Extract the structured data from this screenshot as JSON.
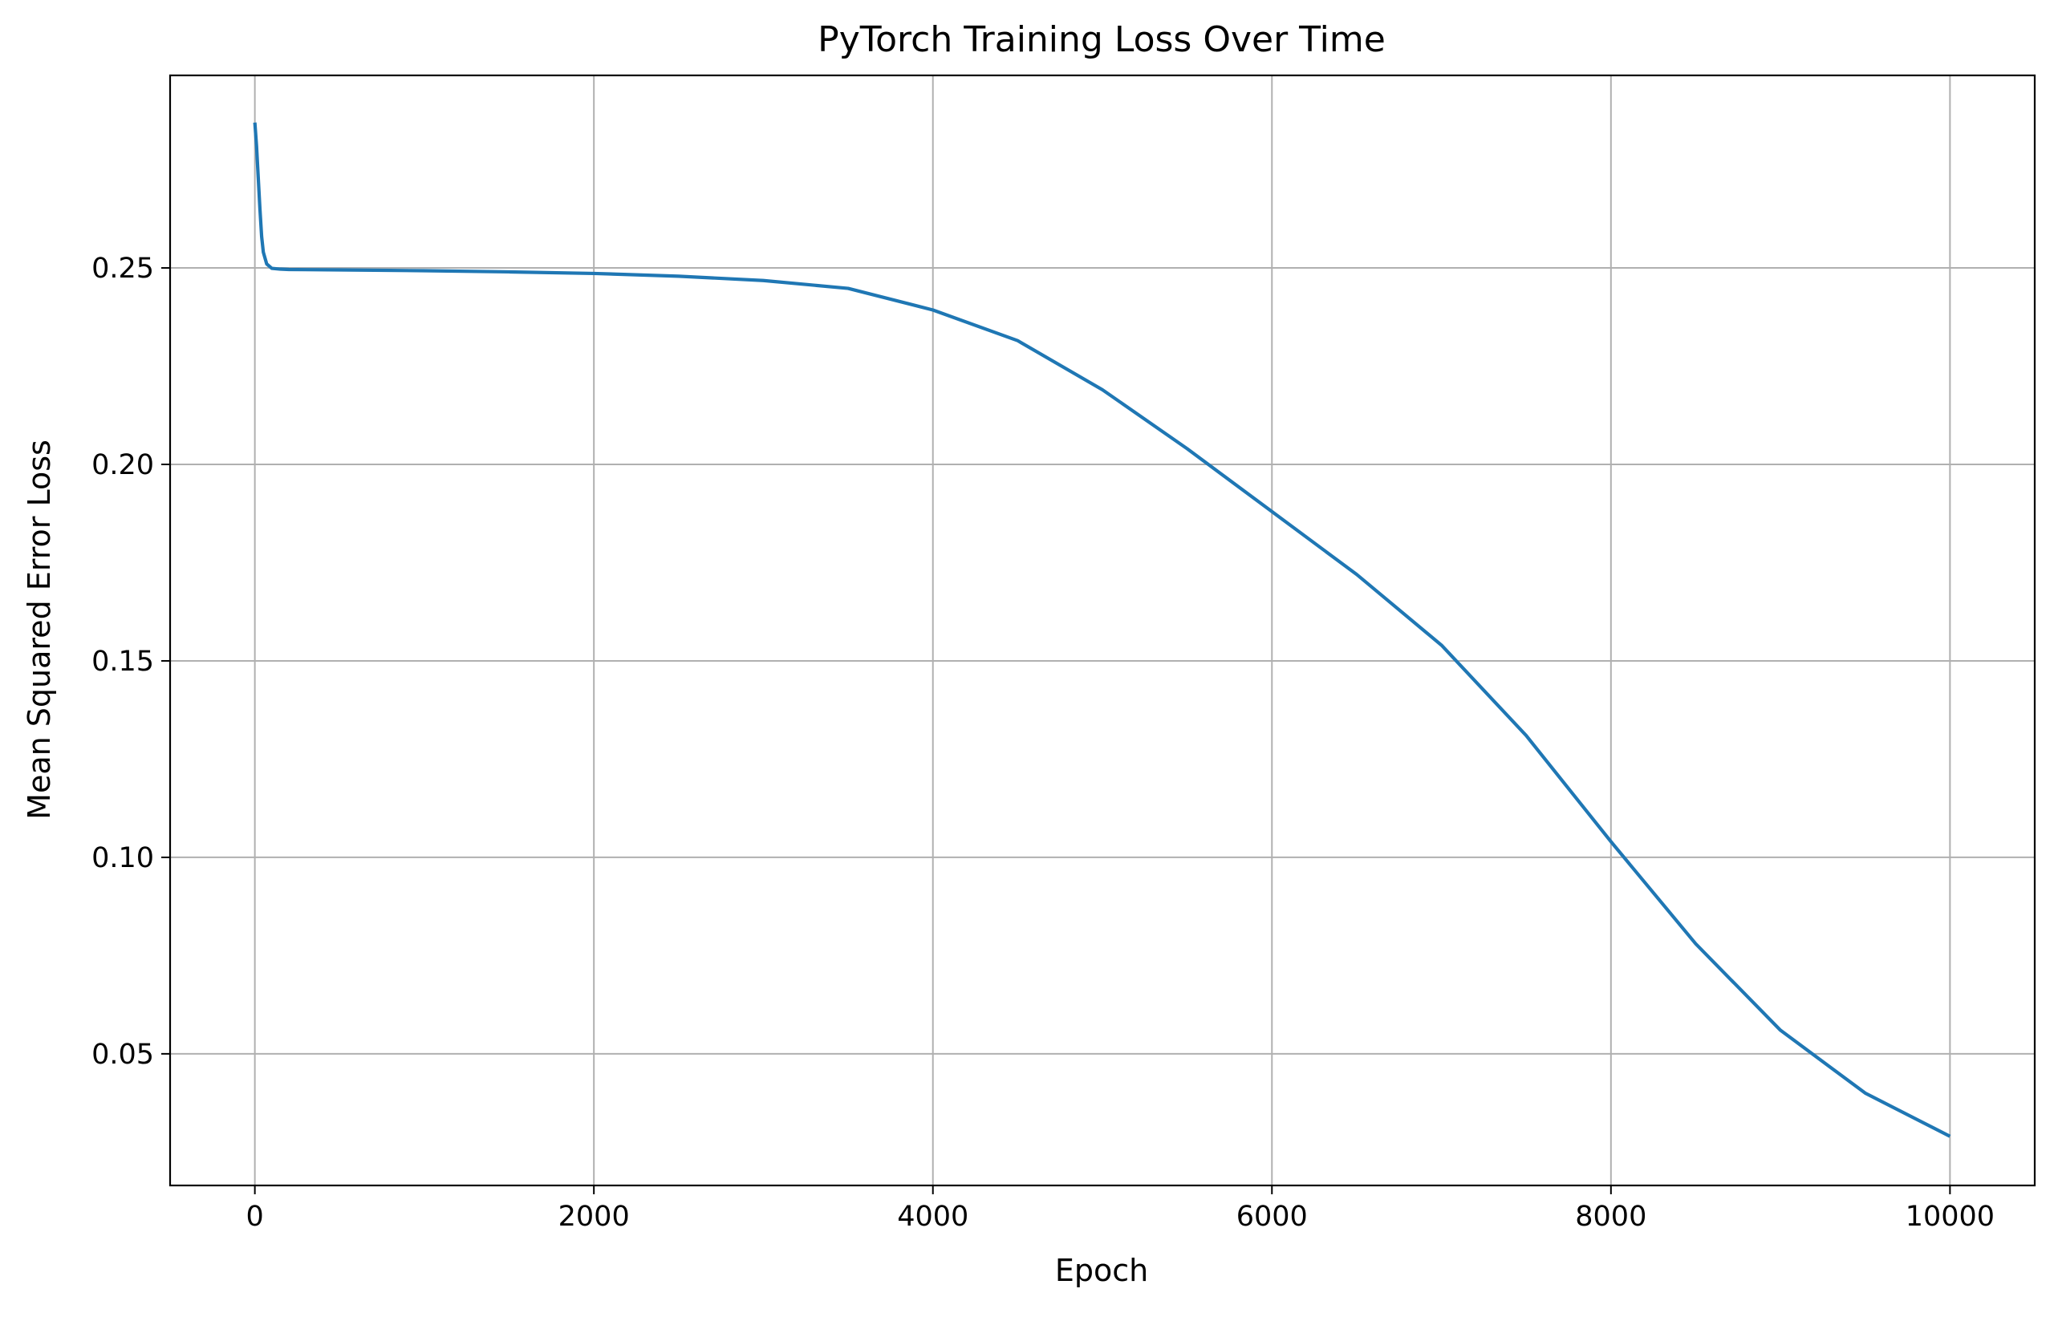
{
  "chart_data": {
    "type": "line",
    "title": "PyTorch Training Loss Over Time",
    "xlabel": "Epoch",
    "ylabel": "Mean Squared Error Loss",
    "xlim": [
      -500,
      10500
    ],
    "ylim": [
      0.0165,
      0.299
    ],
    "x_ticks": [
      0,
      2000,
      4000,
      6000,
      8000,
      10000
    ],
    "x_tick_labels": [
      "0",
      "2000",
      "4000",
      "6000",
      "8000",
      "10000"
    ],
    "y_ticks": [
      0.05,
      0.1,
      0.15,
      0.2,
      0.25
    ],
    "y_tick_labels": [
      "0.05",
      "0.10",
      "0.15",
      "0.20",
      "0.25"
    ],
    "grid": true,
    "legend": false,
    "series": [
      {
        "color": "#1f77b4",
        "x": [
          0,
          10,
          20,
          30,
          40,
          50,
          70,
          100,
          150,
          200,
          500,
          1000,
          1500,
          2000,
          2500,
          3000,
          3500,
          4000,
          4500,
          5000,
          5500,
          6000,
          6500,
          7000,
          7500,
          8000,
          8500,
          9000,
          9500,
          10000
        ],
        "y": [
          0.287,
          0.281,
          0.273,
          0.265,
          0.258,
          0.254,
          0.251,
          0.2499,
          0.2497,
          0.2496,
          0.2495,
          0.2493,
          0.249,
          0.2486,
          0.2479,
          0.2468,
          0.2448,
          0.2393,
          0.2315,
          0.219,
          0.204,
          0.188,
          0.172,
          0.154,
          0.131,
          0.104,
          0.078,
          0.056,
          0.04,
          0.029
        ]
      }
    ]
  }
}
